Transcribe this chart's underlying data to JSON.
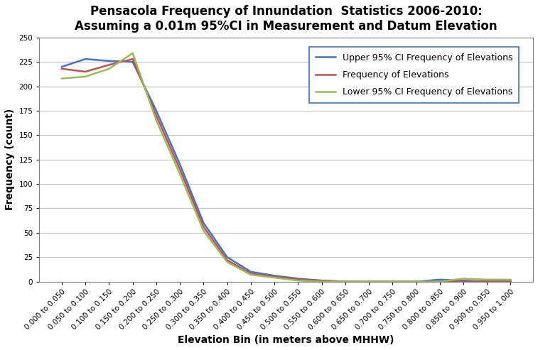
{
  "title_line1": "Pensacola Frequency of Innundation  Statistics 2006-2010:",
  "title_line2": "Assuming a 0.01m 95%CI in Measurement and Datum Elevation",
  "xlabel": "Elevation Bin (in meters above MHHW)",
  "ylabel": "Frequency (count)",
  "categories": [
    "0.000 to 0.050",
    "0.050 to 0.100",
    "0.100 to 0.150",
    "0.150 to 0.200",
    "0.200 to 0.250",
    "0.250 to 0.300",
    "0.300 to 0.350",
    "0.350 to 0.400",
    "0.400 to 0.450",
    "0.450 to 0.500",
    "0.500 to 0.550",
    "0.550 to 0.600",
    "0.600 to 0.650",
    "0.650 to 0.700",
    "0.700 to 0.750",
    "0.750 to 0.800",
    "0.800 to 0.850",
    "0.850 to 0.900",
    "0.900 to 0.950",
    "0.950 to 1.000"
  ],
  "upper_95ci": [
    220,
    228,
    226,
    225,
    175,
    120,
    60,
    25,
    10,
    6,
    3,
    1,
    0,
    0,
    0,
    0,
    2,
    1,
    0,
    0
  ],
  "frequency": [
    218,
    215,
    222,
    228,
    170,
    115,
    56,
    22,
    8,
    5,
    2,
    1,
    0,
    0,
    0,
    0,
    0,
    0,
    0,
    0
  ],
  "lower_95ci": [
    208,
    210,
    218,
    234,
    165,
    110,
    52,
    20,
    7,
    4,
    1,
    0,
    0,
    0,
    0,
    0,
    0,
    3,
    2,
    2
  ],
  "upper_color": "#4472C4",
  "freq_color": "#C0504D",
  "lower_color": "#9BBB59",
  "ylim": [
    0,
    250
  ],
  "yticks": [
    0,
    25,
    50,
    75,
    100,
    125,
    150,
    175,
    200,
    225,
    250
  ],
  "legend_labels": [
    "Upper 95% CI Frequency of Elevations",
    "Frequency of Elevations",
    "Lower 95% CI Frequency of Elevations"
  ],
  "background_color": "#FFFFFF",
  "grid_color": "#BFBFBF",
  "title_fontsize": 12,
  "axis_label_fontsize": 10,
  "tick_fontsize": 7.5,
  "legend_fontsize": 9,
  "line_width": 1.8
}
